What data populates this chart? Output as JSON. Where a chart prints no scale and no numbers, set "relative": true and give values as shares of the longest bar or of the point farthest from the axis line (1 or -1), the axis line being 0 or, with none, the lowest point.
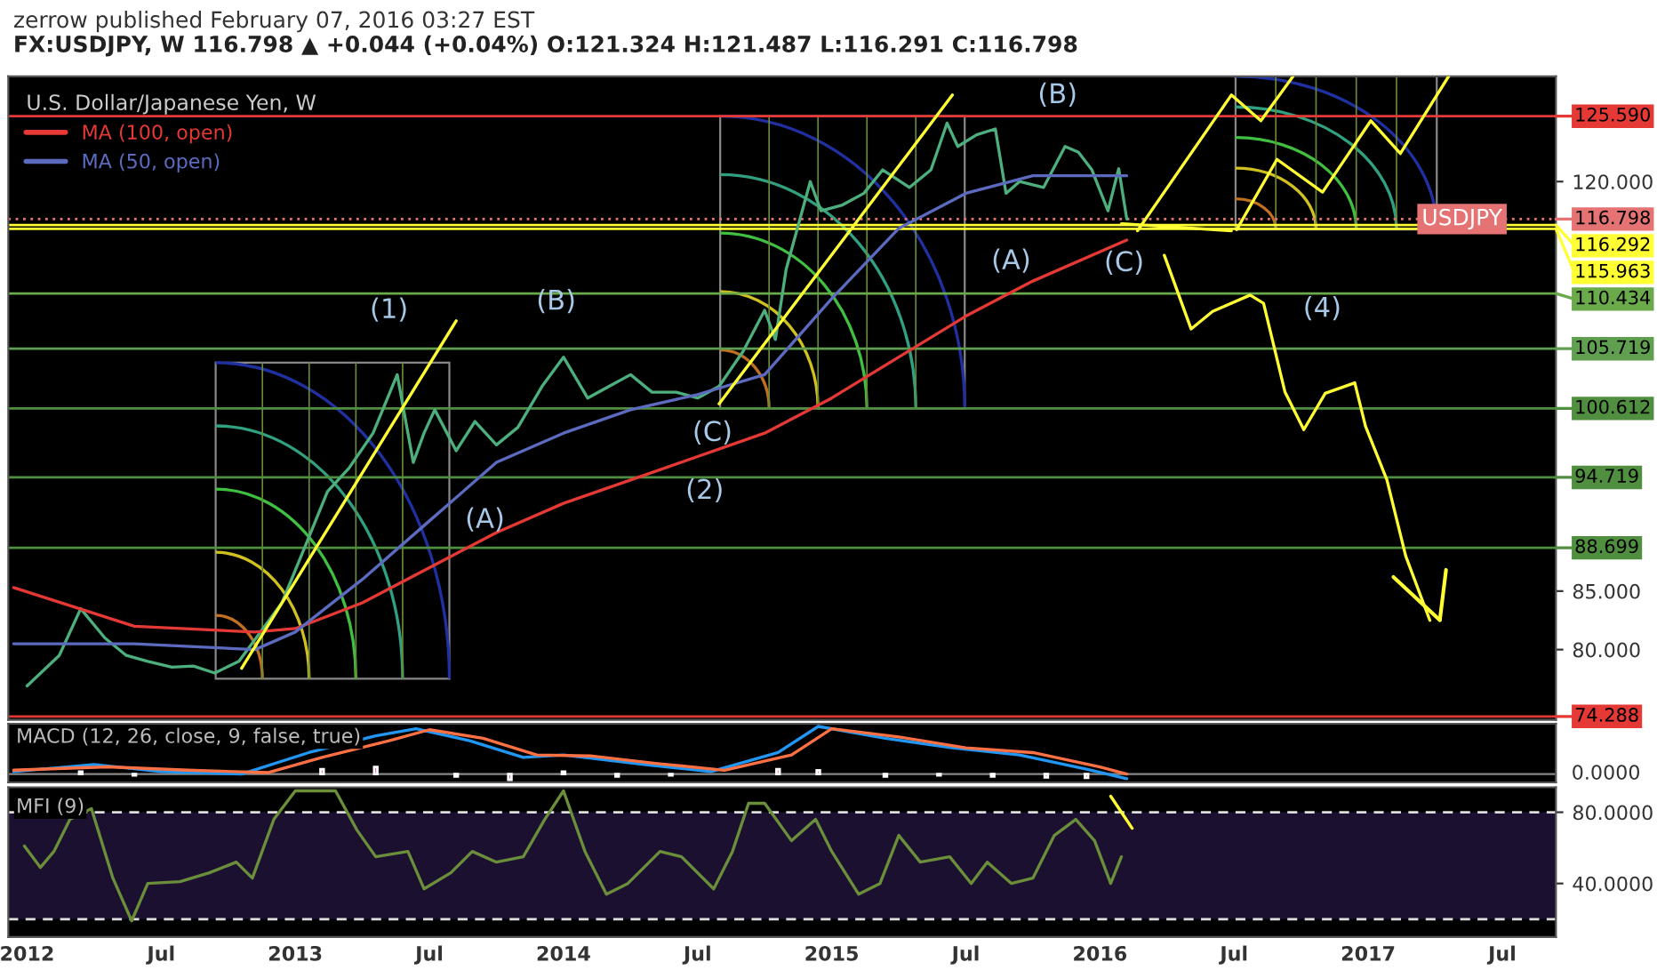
{
  "chart_data": [
    {
      "type": "line",
      "title": "FX:USDJPY, W 116.798 ▲ +0.044 (+0.04%) O:121.324 H:121.487 L:116.291 C:116.798",
      "legend_title": "U.S. Dollar/Japanese Yen, W",
      "legend": "top left",
      "tick_labels": "y",
      "xlim": [
        2011.93,
        2017.7
      ],
      "ylim": [
        74.0,
        129.0
      ],
      "yticks": [
        {
          "value": 120,
          "label": "120.000"
        },
        {
          "value": 85,
          "label": "85.000"
        },
        {
          "value": 80,
          "label": "80.000"
        }
      ],
      "series": [
        {
          "color": "#4caf7d",
          "x": [
            2012.0,
            2012.12,
            2012.2,
            2012.29,
            2012.37,
            2012.45,
            2012.54,
            2012.62,
            2012.7,
            2012.79,
            2012.87,
            2012.95,
            2013.04,
            2013.12,
            2013.2,
            2013.29,
            2013.38,
            2013.44,
            2013.48,
            2013.52,
            2013.6,
            2013.67,
            2013.75,
            2013.83,
            2013.92,
            2014.0,
            2014.09,
            2014.17,
            2014.25,
            2014.33,
            2014.42,
            2014.5,
            2014.58,
            2014.67,
            2014.75,
            2014.79,
            2014.83,
            2014.92,
            2014.96,
            2015.04,
            2015.12,
            2015.19,
            2015.29,
            2015.37,
            2015.43,
            2015.47,
            2015.54,
            2015.61,
            2015.65,
            2015.7,
            2015.79,
            2015.87,
            2015.92,
            2015.97,
            2016.03,
            2016.07,
            2016.1
          ],
          "values": [
            76.9,
            79.5,
            83.5,
            81.0,
            79.5,
            79.0,
            78.5,
            78.6,
            78.0,
            79.0,
            81.5,
            84.0,
            89.0,
            93.5,
            95.5,
            98.5,
            103.5,
            96.0,
            98.5,
            100.5,
            97.0,
            99.5,
            97.5,
            99.0,
            102.5,
            105.0,
            101.5,
            102.5,
            103.5,
            102.0,
            102.0,
            101.5,
            102.5,
            105.5,
            109.0,
            106.5,
            112.5,
            120.0,
            117.5,
            118.0,
            119.0,
            121.0,
            119.5,
            121.0,
            125.0,
            123.0,
            124.0,
            124.5,
            119.0,
            120.0,
            119.5,
            123.0,
            122.5,
            121.0,
            117.5,
            121.1,
            116.8
          ]
        },
        {
          "name": "MA (100, open)",
          "color": "#e53935",
          "x": [
            2011.95,
            2012.4,
            2012.85,
            2013.0,
            2013.25,
            2013.5,
            2013.75,
            2014.0,
            2014.25,
            2014.5,
            2014.75,
            2015.0,
            2015.25,
            2015.5,
            2015.75,
            2016.1
          ],
          "values": [
            85.3,
            82.0,
            81.5,
            81.8,
            84.0,
            87.0,
            90.0,
            92.5,
            94.5,
            96.5,
            98.5,
            101.5,
            105.0,
            108.5,
            111.5,
            115.0
          ]
        },
        {
          "name": "MA (50, open)",
          "color": "#5c6bc0",
          "x": [
            2011.95,
            2012.4,
            2012.85,
            2013.0,
            2013.25,
            2013.5,
            2013.75,
            2014.0,
            2014.25,
            2014.5,
            2014.75,
            2015.0,
            2015.25,
            2015.5,
            2015.75,
            2016.1
          ],
          "values": [
            80.5,
            80.5,
            80.0,
            81.5,
            86.0,
            91.0,
            96.0,
            98.5,
            100.5,
            101.8,
            103.5,
            110.0,
            116.0,
            119.0,
            120.5,
            120.5
          ]
        },
        {
          "color": "#ffff33",
          "x": [
            2016.24,
            2016.34,
            2016.42,
            2016.56,
            2016.61,
            2016.69,
            2016.76,
            2016.84,
            2016.95,
            2016.99,
            2017.07,
            2017.14,
            2017.23
          ],
          "values": [
            113.7,
            107.4,
            108.9,
            110.3,
            109.6,
            102.0,
            98.8,
            101.9,
            102.8,
            99.1,
            94.5,
            88.0,
            82.5
          ]
        },
        {
          "color": "#ffff33",
          "x": [
            2012.8,
            2013.6
          ],
          "values": [
            78.4,
            108.1
          ]
        },
        {
          "color": "#ffff33",
          "x": [
            2014.58,
            2015.45
          ],
          "values": [
            101.0,
            127.4
          ]
        },
        {
          "color": "#ffff33",
          "x": [
            2016.08,
            2016.49
          ],
          "values": [
            116.4,
            115.8
          ]
        },
        {
          "color": "#ffff33",
          "x": [
            2016.14,
            2016.49,
            2016.6,
            2016.72
          ],
          "values": [
            115.8,
            127.4,
            125.2,
            129.0
          ]
        },
        {
          "color": "#ffff33",
          "x": [
            2016.51,
            2016.66,
            2016.83,
            2017.01,
            2017.12,
            2017.3
          ],
          "values": [
            115.9,
            121.9,
            119.1,
            125.2,
            122.4,
            129.0
          ]
        }
      ],
      "ref_lines": [
        {
          "axis": "y",
          "value": 125.59,
          "label": "125.590",
          "color": "#e53935"
        },
        {
          "axis": "y",
          "value": 116.798,
          "label": "116.798",
          "color": "#e57373",
          "line_style": "dotted"
        },
        {
          "axis": "y",
          "value": 116.292,
          "label": "116.292",
          "color": "#ffff33"
        },
        {
          "axis": "y",
          "value": 115.963,
          "label": "115.963",
          "color": "#ffff33"
        },
        {
          "axis": "y",
          "value": 110.434,
          "label": "110.434",
          "color": "#6aaa4a"
        },
        {
          "axis": "y",
          "value": 105.719,
          "label": "105.719",
          "color": "#5f9f4f"
        },
        {
          "axis": "y",
          "value": 100.612,
          "label": "100.612",
          "color": "#4f8f3f"
        },
        {
          "axis": "y",
          "value": 94.719,
          "label": "94.719",
          "color": "#4f8f3f"
        },
        {
          "axis": "y",
          "value": 88.699,
          "label": "88.699",
          "color": "#4f8f3f"
        },
        {
          "axis": "y",
          "value": 74.288,
          "label": "74.288",
          "color": "#e53935"
        }
      ],
      "annotations": [
        "zerrow published February 07, 2016 03:27 EST",
        {
          "text": "USDJPY",
          "x": 2017.5,
          "y": 116.798
        },
        "(1)",
        "(A)",
        "(B)",
        "(C)",
        "(2)",
        "(B)",
        "(A)",
        "(C)",
        "(4)"
      ]
    },
    {
      "type": "line",
      "title": "MACD (12, 26, close, 9, false, true)",
      "relative": true,
      "tick_labels": "y",
      "xlim": [
        2011.93,
        2017.7
      ],
      "annotations": [
        "0.0000"
      ],
      "series": [
        {
          "type": "bar",
          "color": "#e040a0",
          "x": [
            2012.2,
            2012.4,
            2013.1,
            2013.3,
            2013.6,
            2013.8,
            2014.0,
            2014.2,
            2014.4,
            2014.8,
            2014.95,
            2015.2,
            2015.4,
            2015.6,
            2015.8,
            2015.95
          ],
          "values": [
            0.05,
            -0.03,
            0.1,
            0.15,
            -0.05,
            -0.12,
            0.05,
            -0.05,
            -0.03,
            0.1,
            0.08,
            -0.05,
            -0.03,
            -0.05,
            -0.07,
            -0.08
          ]
        },
        {
          "color": "#2196f3",
          "x": [
            2011.95,
            2012.25,
            2012.5,
            2012.8,
            2013.05,
            2013.3,
            2013.45,
            2013.65,
            2013.85,
            2014.0,
            2014.3,
            2014.55,
            2014.8,
            2014.95,
            2015.2,
            2015.45,
            2015.7,
            2015.95,
            2016.1
          ],
          "values": [
            0.05,
            0.2,
            0.05,
            0.0,
            0.45,
            0.8,
            0.95,
            0.7,
            0.35,
            0.4,
            0.2,
            0.05,
            0.45,
            1.0,
            0.75,
            0.55,
            0.4,
            0.1,
            -0.1
          ]
        },
        {
          "color": "#ff7043",
          "x": [
            2011.95,
            2012.3,
            2012.6,
            2012.9,
            2013.1,
            2013.35,
            2013.5,
            2013.7,
            2013.9,
            2014.1,
            2014.35,
            2014.6,
            2014.85,
            2015.0,
            2015.25,
            2015.5,
            2015.75,
            2016.0,
            2016.1
          ],
          "values": [
            0.08,
            0.15,
            0.08,
            0.03,
            0.35,
            0.7,
            0.93,
            0.75,
            0.4,
            0.38,
            0.22,
            0.08,
            0.4,
            0.95,
            0.78,
            0.55,
            0.45,
            0.15,
            0.0
          ]
        }
      ]
    },
    {
      "type": "line",
      "title": "MFI (9)",
      "xlim": [
        2011.93,
        2017.7
      ],
      "xticks": [
        {
          "value": 2012,
          "label": "2012"
        },
        {
          "value": 2012.5,
          "label": "Jul"
        },
        {
          "value": 2013,
          "label": "2013"
        },
        {
          "value": 2013.5,
          "label": "Jul"
        },
        {
          "value": 2014,
          "label": "2014"
        },
        {
          "value": 2014.5,
          "label": "Jul"
        },
        {
          "value": 2015,
          "label": "2015"
        },
        {
          "value": 2015.5,
          "label": "Jul"
        },
        {
          "value": 2016,
          "label": "2016"
        },
        {
          "value": 2016.5,
          "label": "Jul"
        },
        {
          "value": 2017,
          "label": "2017"
        },
        {
          "value": 2017.5,
          "label": "Jul"
        }
      ],
      "ylim": [
        10,
        94
      ],
      "yticks": [
        {
          "value": 80,
          "label": "80.0000"
        },
        {
          "value": 40,
          "label": "40.0000"
        }
      ],
      "bands": [
        {
          "axis": "y",
          "from": 20,
          "to": 80,
          "color": "#1c1030"
        }
      ],
      "ref_lines": [
        {
          "axis": "y",
          "value": 80,
          "color": "#dddddd",
          "line_style": "dashed"
        },
        {
          "axis": "y",
          "value": 20,
          "color": "#dddddd",
          "line_style": "dashed"
        }
      ],
      "series": [
        {
          "color": "#6b8e3a",
          "x": [
            2011.99,
            2012.05,
            2012.1,
            2012.16,
            2012.24,
            2012.32,
            2012.39,
            2012.45,
            2012.57,
            2012.68,
            2012.78,
            2012.84,
            2012.92,
            2013.0,
            2013.15,
            2013.23,
            2013.3,
            2013.42,
            2013.48,
            2013.58,
            2013.66,
            2013.75,
            2013.85,
            2013.93,
            2014.0,
            2014.08,
            2014.16,
            2014.24,
            2014.36,
            2014.44,
            2014.56,
            2014.63,
            2014.69,
            2014.75,
            2014.85,
            2014.94,
            2015.0,
            2015.1,
            2015.18,
            2015.25,
            2015.33,
            2015.44,
            2015.52,
            2015.58,
            2015.67,
            2015.75,
            2015.83,
            2015.91,
            2015.98,
            2016.04,
            2016.08
          ],
          "values": [
            61,
            49,
            58,
            76,
            82,
            43,
            19,
            40,
            41,
            46,
            52,
            43,
            76,
            92,
            92,
            70,
            55,
            58,
            37,
            46,
            58,
            52,
            55,
            76,
            92,
            58,
            34,
            40,
            58,
            55,
            37,
            58,
            85,
            85,
            64,
            76,
            58,
            34,
            40,
            67,
            52,
            55,
            40,
            52,
            40,
            43,
            67,
            76,
            64,
            40,
            55
          ]
        },
        {
          "color": "#ffff33",
          "x": [
            2016.04,
            2016.12
          ],
          "values": [
            89,
            71
          ]
        }
      ]
    }
  ]
}
